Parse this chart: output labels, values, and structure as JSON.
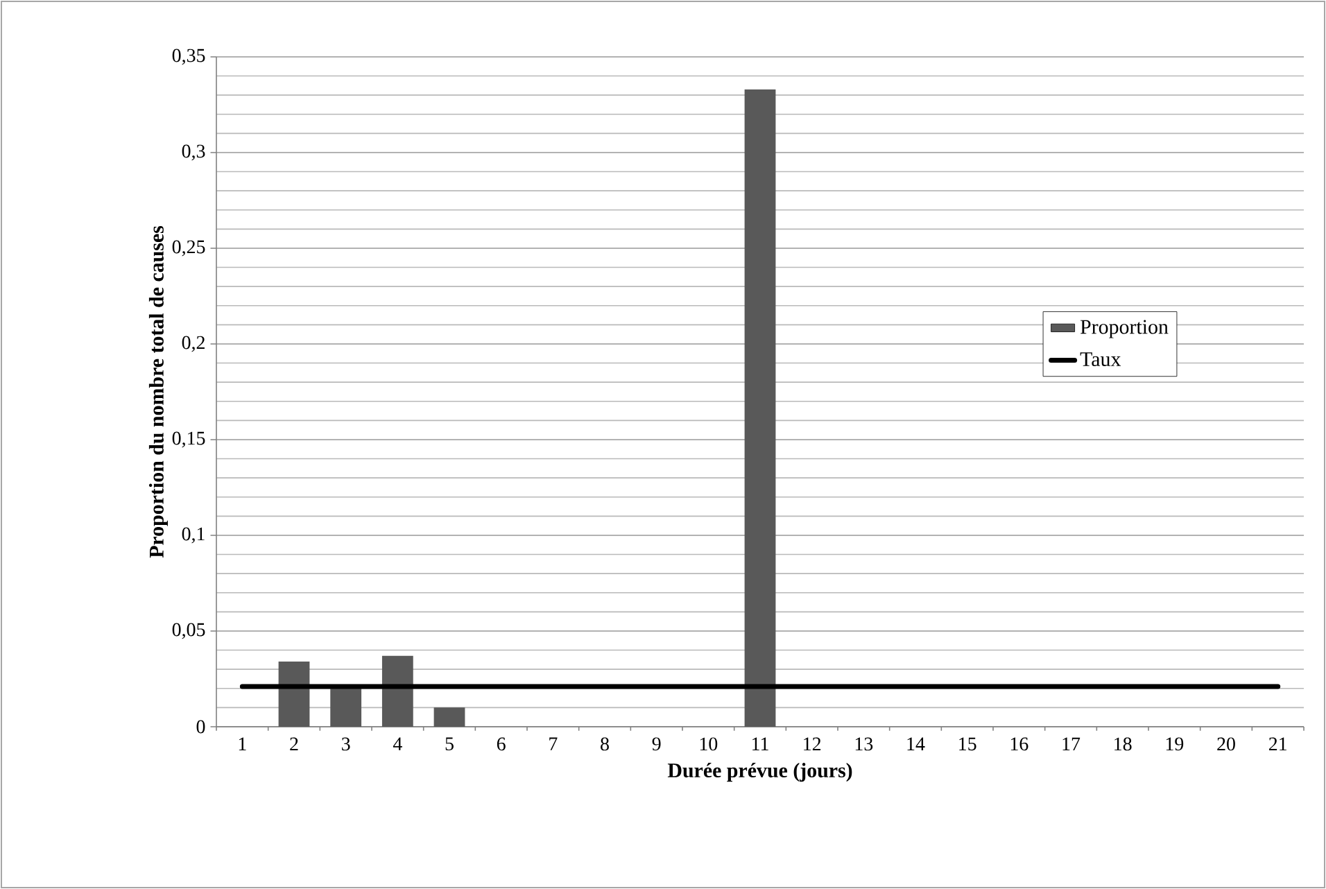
{
  "chart_data": {
    "type": "bar",
    "xlabel": "Durée prévue (jours)",
    "ylabel": "Proportion du nombre total de causes",
    "categories": [
      "1",
      "2",
      "3",
      "4",
      "5",
      "6",
      "7",
      "8",
      "9",
      "10",
      "11",
      "12",
      "13",
      "14",
      "15",
      "16",
      "17",
      "18",
      "19",
      "20",
      "21"
    ],
    "series": [
      {
        "name": "Proportion",
        "color": "#595959",
        "values": [
          0,
          0.034,
          0.02,
          0.037,
          0.01,
          0,
          0,
          0,
          0,
          0,
          0.333,
          0,
          0,
          0,
          0,
          0,
          0,
          0,
          0,
          0,
          0
        ]
      },
      {
        "name": "Taux",
        "type": "line",
        "color": "#000000",
        "values": [
          0.021,
          0.021,
          0.021,
          0.021,
          0.021,
          0.021,
          0.021,
          0.021,
          0.021,
          0.021,
          0.021,
          0.021,
          0.021,
          0.021,
          0.021,
          0.021,
          0.021,
          0.021,
          0.021,
          0.021,
          0.021
        ]
      }
    ],
    "ylim": [
      0,
      0.35
    ],
    "yticks": [
      0,
      {
        "value": 0.05,
        "label": "0,05"
      },
      {
        "value": 0.1,
        "label": "0,1"
      },
      {
        "value": 0.15,
        "label": "0,15"
      },
      {
        "value": 0.2,
        "label": "0,2"
      },
      {
        "value": 0.25,
        "label": "0,25"
      },
      {
        "value": 0.3,
        "label": "0,3"
      },
      {
        "value": 0.35,
        "label": "0,35"
      }
    ],
    "grid": "y",
    "legend": "right"
  }
}
